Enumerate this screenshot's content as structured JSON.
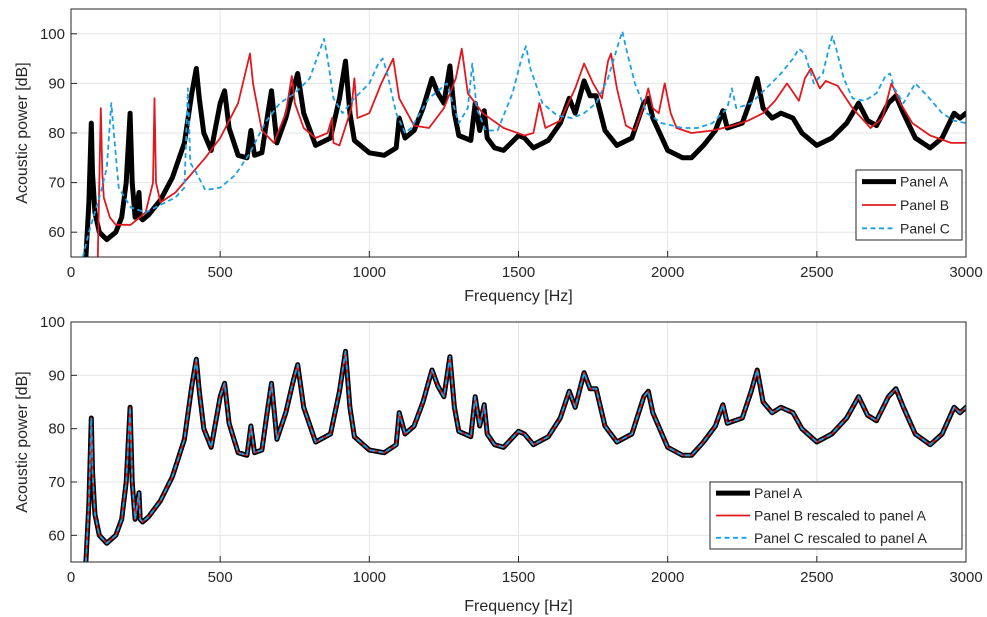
{
  "chart_data": [
    {
      "type": "line",
      "xlabel": "Frequency [Hz]",
      "ylabel": "Acoustic power [dB]",
      "xlim": [
        0,
        3000
      ],
      "ylim": [
        55,
        105
      ],
      "xticks": [
        0,
        500,
        1000,
        1500,
        2000,
        2500,
        3000
      ],
      "yticks": [
        60,
        70,
        80,
        90,
        100
      ],
      "grid": true,
      "legend_position": "bottom-right",
      "series": [
        {
          "name": "Panel A",
          "color": "#000000",
          "style": "solid-thick",
          "x": [
            50,
            60,
            68,
            72,
            80,
            95,
            120,
            150,
            170,
            185,
            198,
            205,
            215,
            228,
            232,
            240,
            260,
            300,
            340,
            380,
            405,
            420,
            430,
            445,
            470,
            500,
            515,
            530,
            560,
            590,
            603,
            615,
            640,
            660,
            672,
            690,
            720,
            745,
            760,
            780,
            820,
            870,
            900,
            920,
            935,
            950,
            1000,
            1050,
            1090,
            1100,
            1120,
            1150,
            1180,
            1210,
            1230,
            1250,
            1270,
            1285,
            1300,
            1340,
            1355,
            1370,
            1385,
            1395,
            1420,
            1450,
            1500,
            1520,
            1550,
            1600,
            1640,
            1670,
            1690,
            1720,
            1740,
            1760,
            1790,
            1830,
            1880,
            1920,
            1935,
            1950,
            2000,
            2050,
            2080,
            2120,
            2160,
            2185,
            2200,
            2250,
            2280,
            2300,
            2320,
            2350,
            2380,
            2420,
            2450,
            2500,
            2550,
            2600,
            2640,
            2670,
            2700,
            2740,
            2765,
            2790,
            2830,
            2880,
            2920,
            2960,
            2980,
            3000
          ],
          "y": [
            55,
            66,
            82,
            72,
            64,
            60,
            58.5,
            60,
            63,
            70,
            84,
            70,
            63,
            68,
            63,
            62.5,
            63.5,
            66.5,
            71,
            78,
            88,
            93,
            87,
            80,
            76.5,
            86,
            88.5,
            81,
            75.5,
            75,
            80.5,
            75.5,
            76,
            84,
            88.5,
            78,
            83,
            89,
            92,
            84,
            77.5,
            79,
            87,
            94.5,
            84,
            78.5,
            76,
            75.5,
            77,
            83,
            79,
            80.5,
            85,
            91,
            88,
            86,
            93.5,
            84,
            79.5,
            78.5,
            86,
            80.5,
            84.5,
            79,
            77,
            76.5,
            79.5,
            79,
            77,
            78.5,
            82,
            87,
            84,
            90.5,
            87.5,
            87.5,
            80.5,
            77.5,
            79,
            86,
            87,
            83,
            76.5,
            75,
            75,
            77.5,
            80.5,
            84.5,
            81,
            82,
            87,
            91,
            85,
            83,
            84,
            83,
            80,
            77.5,
            79,
            82,
            86,
            82.5,
            81.5,
            86,
            87.5,
            84,
            79,
            77,
            79,
            84,
            83,
            84
          ]
        },
        {
          "name": "Panel B",
          "color": "#e0191e",
          "style": "solid",
          "x": [
            90,
            95,
            100,
            105,
            110,
            130,
            150,
            200,
            250,
            275,
            280,
            285,
            300,
            350,
            400,
            450,
            500,
            560,
            600,
            610,
            640,
            680,
            720,
            740,
            750,
            780,
            820,
            860,
            875,
            880,
            900,
            940,
            950,
            960,
            1000,
            1040,
            1080,
            1100,
            1150,
            1200,
            1250,
            1290,
            1310,
            1330,
            1380,
            1450,
            1520,
            1550,
            1570,
            1590,
            1640,
            1690,
            1720,
            1750,
            1780,
            1800,
            1810,
            1830,
            1860,
            1890,
            1920,
            1935,
            1950,
            1970,
            1990,
            2010,
            2030,
            2080,
            2150,
            2220,
            2270,
            2320,
            2360,
            2400,
            2440,
            2460,
            2480,
            2510,
            2530,
            2570,
            2620,
            2680,
            2720,
            2750,
            2780,
            2820,
            2880,
            2950,
            3000
          ],
          "y": [
            55,
            70,
            85,
            72,
            67,
            63,
            61.5,
            61.5,
            64,
            70,
            87,
            70,
            66,
            68,
            71.5,
            75,
            79,
            86,
            96,
            90,
            80.5,
            78,
            84,
            91.5,
            86,
            81,
            79,
            80,
            83,
            78,
            77.5,
            85,
            91,
            83,
            84,
            90,
            95,
            87,
            81.5,
            81,
            85,
            91,
            97,
            88,
            84,
            81,
            79.5,
            80,
            86,
            81,
            82.5,
            89,
            94,
            90,
            87,
            94.5,
            96,
            89,
            81.5,
            80.5,
            85.5,
            89,
            85,
            84,
            90,
            84,
            81,
            80,
            80.5,
            81.5,
            82.5,
            84,
            86.5,
            90,
            86.5,
            91,
            93,
            89,
            90.5,
            89.5,
            85,
            81,
            83,
            90,
            86,
            82,
            79.5,
            78,
            78
          ]
        },
        {
          "name": "Panel C",
          "color": "#1aa0e8",
          "style": "dashed",
          "x": [
            40,
            60,
            80,
            100,
            120,
            135,
            145,
            160,
            200,
            250,
            300,
            350,
            380,
            392,
            400,
            420,
            450,
            500,
            550,
            600,
            650,
            700,
            750,
            800,
            830,
            848,
            860,
            880,
            910,
            950,
            1000,
            1030,
            1045,
            1060,
            1090,
            1120,
            1140,
            1160,
            1200,
            1260,
            1300,
            1330,
            1345,
            1360,
            1390,
            1430,
            1480,
            1510,
            1525,
            1540,
            1580,
            1630,
            1680,
            1720,
            1760,
            1800,
            1830,
            1848,
            1865,
            1890,
            1930,
            1980,
            2050,
            2100,
            2150,
            2200,
            2215,
            2230,
            2280,
            2330,
            2380,
            2420,
            2440,
            2460,
            2490,
            2520,
            2540,
            2552,
            2565,
            2590,
            2620,
            2660,
            2700,
            2730,
            2745,
            2760,
            2790,
            2810,
            2830,
            2870,
            2920,
            2960,
            3000
          ],
          "y": [
            55,
            60,
            64,
            68,
            73,
            86,
            79,
            69,
            65,
            64,
            65.5,
            67,
            69,
            89,
            74,
            72,
            68.5,
            69,
            71.5,
            76,
            82,
            86,
            88,
            91,
            96,
            99,
            95,
            87,
            84,
            87,
            90,
            94,
            95,
            92,
            84,
            80,
            81,
            83,
            87,
            90,
            82,
            85,
            94,
            85,
            80.5,
            80.5,
            88,
            95,
            97.5,
            93,
            86,
            83.5,
            83,
            84,
            86,
            91,
            97,
            100.5,
            96,
            90,
            84,
            82,
            81,
            81,
            82,
            85,
            89,
            85,
            86,
            89,
            92,
            95,
            97,
            96,
            90,
            92,
            97,
            99.5,
            97,
            91,
            87,
            86.5,
            88,
            91.5,
            92,
            89,
            86,
            88,
            90,
            87.5,
            84,
            82.5,
            82
          ]
        }
      ]
    },
    {
      "type": "line",
      "xlabel": "Frequency [Hz]",
      "ylabel": "Acoustic power [dB]",
      "xlim": [
        0,
        3000
      ],
      "ylim": [
        55,
        100
      ],
      "xticks": [
        0,
        500,
        1000,
        1500,
        2000,
        2500,
        3000
      ],
      "yticks": [
        60,
        70,
        80,
        90,
        100
      ],
      "grid": true,
      "legend_position": "bottom-right",
      "series": [
        {
          "name": "Panel A",
          "color": "#000000",
          "style": "solid-thick",
          "x": [
            50,
            60,
            68,
            72,
            80,
            95,
            120,
            150,
            170,
            185,
            198,
            205,
            215,
            228,
            232,
            240,
            260,
            300,
            340,
            380,
            405,
            420,
            430,
            445,
            470,
            500,
            515,
            530,
            560,
            590,
            603,
            615,
            640,
            660,
            672,
            690,
            720,
            745,
            760,
            780,
            820,
            870,
            900,
            920,
            935,
            950,
            1000,
            1050,
            1090,
            1100,
            1120,
            1150,
            1180,
            1210,
            1230,
            1250,
            1270,
            1285,
            1300,
            1340,
            1355,
            1370,
            1385,
            1395,
            1420,
            1450,
            1500,
            1520,
            1550,
            1600,
            1640,
            1670,
            1690,
            1720,
            1740,
            1760,
            1790,
            1830,
            1880,
            1920,
            1935,
            1950,
            2000,
            2050,
            2080,
            2120,
            2160,
            2185,
            2200,
            2250,
            2280,
            2300,
            2320,
            2350,
            2380,
            2420,
            2450,
            2500,
            2550,
            2600,
            2640,
            2670,
            2700,
            2740,
            2765,
            2790,
            2830,
            2880,
            2920,
            2960,
            2980,
            3000
          ],
          "y": [
            55,
            66,
            82,
            72,
            64,
            60,
            58.5,
            60,
            63,
            70,
            84,
            70,
            63,
            68,
            63,
            62.5,
            63.5,
            66.5,
            71,
            78,
            88,
            93,
            87,
            80,
            76.5,
            86,
            88.5,
            81,
            75.5,
            75,
            80.5,
            75.5,
            76,
            84,
            88.5,
            78,
            83,
            89,
            92,
            84,
            77.5,
            79,
            87,
            94.5,
            84,
            78.5,
            76,
            75.5,
            77,
            83,
            79,
            80.5,
            85,
            91,
            88,
            86,
            93.5,
            84,
            79.5,
            78.5,
            86,
            80.5,
            84.5,
            79,
            77,
            76.5,
            79.5,
            79,
            77,
            78.5,
            82,
            87,
            84,
            90.5,
            87.5,
            87.5,
            80.5,
            77.5,
            79,
            86,
            87,
            83,
            76.5,
            75,
            75,
            77.5,
            80.5,
            84.5,
            81,
            82,
            87,
            91,
            85,
            83,
            84,
            83,
            80,
            77.5,
            79,
            82,
            86,
            82.5,
            81.5,
            86,
            87.5,
            84,
            79,
            77,
            79,
            84,
            83,
            84
          ]
        },
        {
          "name": "Panel B rescaled to panel A",
          "color": "#e0191e",
          "style": "solid",
          "same_as_series": 0
        },
        {
          "name": "Panel C rescaled to panel A",
          "color": "#1aa0e8",
          "style": "dashed",
          "same_as_series": 0
        }
      ]
    }
  ]
}
